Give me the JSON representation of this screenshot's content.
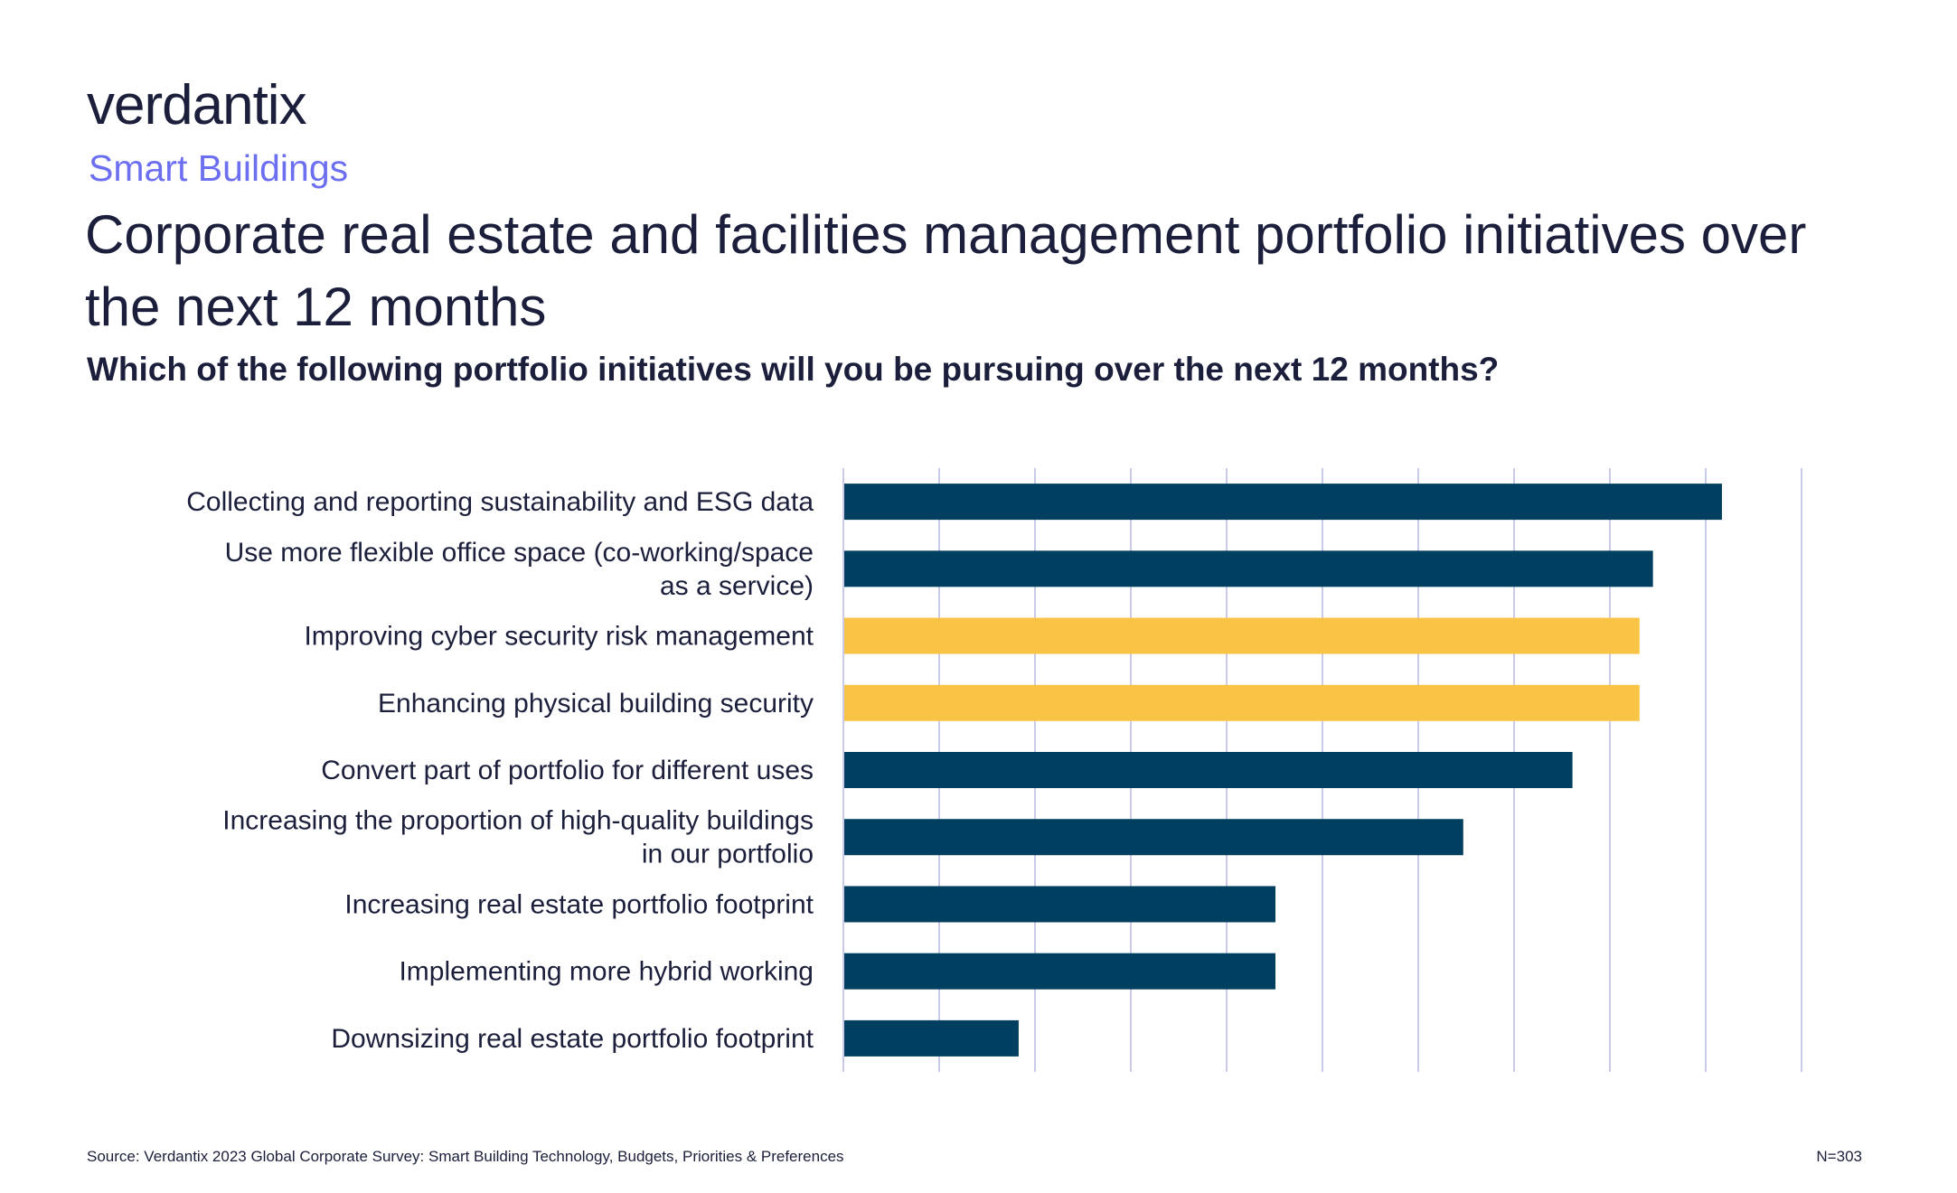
{
  "header": {
    "logo_text": "verdantix",
    "section": "Smart Buildings",
    "title": "Corporate real estate and facilities management portfolio initiatives over the next 12 months",
    "subtitle": "Which of the following portfolio initiatives will you be pursuing over the next 12 months?"
  },
  "footer": {
    "source": "Source: Verdantix 2023 Global Corporate Survey: Smart Building Technology, Budgets, Priorities & Preferences",
    "sample": "N=303"
  },
  "colors": {
    "primary_bar": "#003f5f",
    "highlight_bar": "#f9c445",
    "gridline": "#c9c9e8",
    "accent_text": "#6c6ff0"
  },
  "chart_data": {
    "type": "bar",
    "orientation": "horizontal",
    "title": "",
    "xlabel": "",
    "ylabel": "",
    "grid": true,
    "xlim": [
      0,
      50
    ],
    "categories": [
      [
        "Collecting and reporting sustainability and ESG data"
      ],
      [
        "Use more flexible office space (co-working/space",
        "as a service)"
      ],
      [
        "Improving cyber security risk management"
      ],
      [
        "Enhancing physical building security"
      ],
      [
        "Convert part of portfolio for different uses"
      ],
      [
        "Increasing the proportion of high-quality buildings",
        "in our portfolio"
      ],
      [
        "Increasing real estate portfolio footprint"
      ],
      [
        "Implementing more hybrid working"
      ],
      [
        "Downsizing real estate portfolio footprint"
      ]
    ],
    "values": [
      45.8,
      42.2,
      41.5,
      41.5,
      38.0,
      32.3,
      22.5,
      22.5,
      9.1
    ],
    "highlighted": [
      false,
      false,
      true,
      true,
      false,
      false,
      false,
      false,
      false
    ]
  }
}
